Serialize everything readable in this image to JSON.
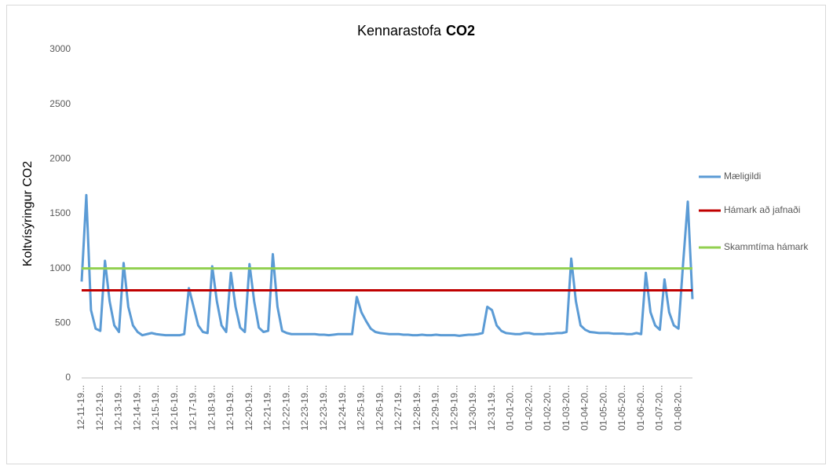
{
  "chart_data": {
    "type": "line",
    "title": [
      "Kennarastofa",
      "CO2"
    ],
    "ylabel": "Koltvísýringur CO2",
    "ylim": [
      0,
      3000
    ],
    "yticks": [
      0,
      500,
      1000,
      1500,
      2000,
      2500,
      3000
    ],
    "grid": false,
    "legend": "right",
    "categories": [
      "12-11-19...",
      null,
      null,
      null,
      "12-12-19...",
      null,
      null,
      null,
      "12-13-19...",
      null,
      null,
      null,
      "12-14-19...",
      null,
      null,
      null,
      "12-15-19...",
      null,
      null,
      null,
      "12-16-19...",
      null,
      null,
      null,
      "12-17-19...",
      null,
      null,
      null,
      "12-18-19...",
      null,
      null,
      null,
      "12-19-19...",
      null,
      null,
      null,
      "12-20-19...",
      null,
      null,
      null,
      "12-21-19...",
      null,
      null,
      null,
      "12-22-19...",
      null,
      null,
      null,
      "12-23-19...",
      null,
      null,
      null,
      "12-23-19...",
      null,
      null,
      null,
      "12-24-19...",
      null,
      null,
      null,
      "12-25-19...",
      null,
      null,
      null,
      "12-26-19...",
      null,
      null,
      null,
      "12-27-19...",
      null,
      null,
      null,
      "12-28-19...",
      null,
      null,
      null,
      "12-29-19...",
      null,
      null,
      null,
      "12-29-19...",
      null,
      null,
      null,
      "12-30-19...",
      null,
      null,
      null,
      "12-31-19...",
      null,
      null,
      null,
      "01-01-20...",
      null,
      null,
      null,
      "01-02-20...",
      null,
      null,
      null,
      "01-02-20...",
      null,
      null,
      null,
      "01-03-20...",
      null,
      null,
      null,
      "01-04-20...",
      null,
      null,
      null,
      "01-05-20...",
      null,
      null,
      null,
      "01-05-20...",
      null,
      null,
      null,
      "01-06-20...",
      null,
      null,
      null,
      "01-07-20...",
      null,
      null,
      null,
      "01-08-20...",
      null,
      null,
      null
    ],
    "series": [
      {
        "name": "Mæligildi",
        "color": "#5b9bd5",
        "values": [
          880,
          1670,
          620,
          450,
          430,
          1070,
          700,
          480,
          420,
          1050,
          650,
          480,
          420,
          390,
          400,
          410,
          400,
          395,
          390,
          390,
          390,
          390,
          400,
          820,
          650,
          480,
          420,
          410,
          1020,
          700,
          480,
          420,
          960,
          650,
          460,
          420,
          1040,
          700,
          460,
          420,
          430,
          1130,
          650,
          430,
          410,
          400,
          400,
          400,
          400,
          400,
          400,
          395,
          395,
          390,
          395,
          400,
          400,
          400,
          400,
          740,
          600,
          520,
          450,
          420,
          410,
          405,
          400,
          400,
          400,
          395,
          395,
          390,
          390,
          395,
          390,
          390,
          395,
          390,
          390,
          390,
          390,
          385,
          390,
          395,
          395,
          400,
          410,
          650,
          620,
          480,
          430,
          410,
          405,
          400,
          400,
          410,
          410,
          400,
          400,
          400,
          405,
          405,
          410,
          410,
          420,
          1090,
          700,
          480,
          440,
          420,
          415,
          410,
          410,
          410,
          405,
          405,
          405,
          400,
          400,
          410,
          400,
          960,
          600,
          480,
          440,
          900,
          600,
          480,
          450,
          1050,
          1610,
          720
        ]
      },
      {
        "name": "Hámark að jafnaði",
        "color": "#c00000",
        "value": 800
      },
      {
        "name": "Skammtíma hámark",
        "color": "#92d050",
        "value": 1000
      }
    ]
  }
}
